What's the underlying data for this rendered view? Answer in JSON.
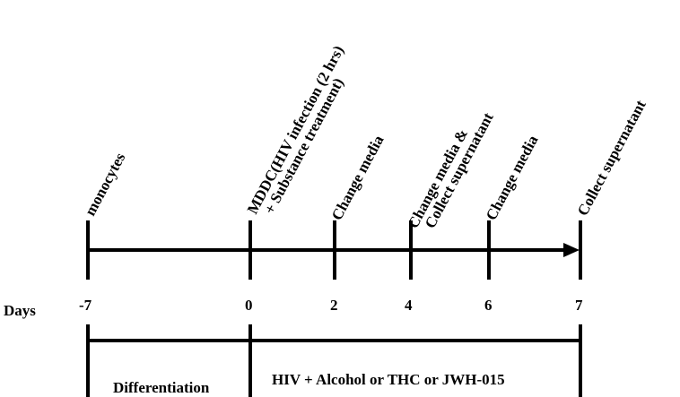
{
  "timeline": {
    "days_label": "Days",
    "arrow_color": "#000000",
    "ticks": [
      {
        "day": "-7",
        "event": [
          "monocytes"
        ]
      },
      {
        "day": "0",
        "event": [
          "MDDC(HIV infection  (2 hrs)",
          "+ Substance treatment)"
        ]
      },
      {
        "day": "2",
        "event": [
          "Change media"
        ]
      },
      {
        "day": "4",
        "event": [
          "Change media &",
          "Collect supernatant"
        ]
      },
      {
        "day": "6",
        "event": [
          "Change media"
        ]
      },
      {
        "day": "7",
        "event": [
          "Collect supernatant"
        ]
      }
    ]
  },
  "phases": [
    {
      "label": "Differentiation"
    },
    {
      "label": "HIV + Alcohol  or THC  or JWH-015"
    }
  ]
}
